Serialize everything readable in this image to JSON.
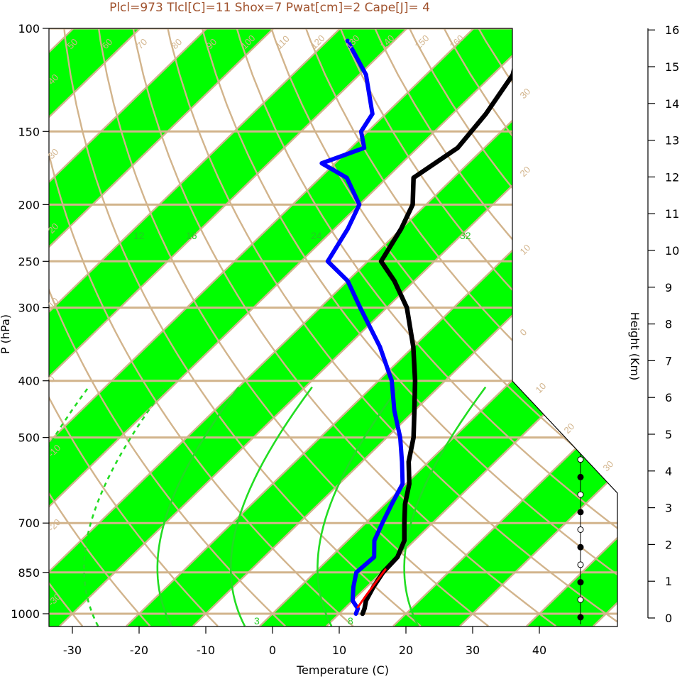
{
  "header": {
    "title": "Plcl=973 Tlcl[C]=11 Shox=7 Pwat[cm]=2 Cape[J]= 4"
  },
  "colors": {
    "band": "#00ff00",
    "isoline": "#d2b48c",
    "mixing": "#22dd22",
    "dewpoint": "#0000ff",
    "temperature": "#000000",
    "parcel": "#ff0000",
    "label_tan": "#d2b48c",
    "title": "#a0522d"
  },
  "chart_data": {
    "type": "line",
    "title": "Plcl=973 Tlcl[C]=11 Shox=7 Pwat[cm]=2 Cape[J]= 4",
    "xlabel": "Temperature (C)",
    "ylabel": "P (hPa)",
    "y2label": "Height (Km)",
    "x_ticks": [
      "-30",
      "-20",
      "-10",
      "0",
      "10",
      "20",
      "30",
      "40"
    ],
    "p_ticks": [
      {
        "p": 100,
        "label": "100"
      },
      {
        "p": 150,
        "label": "150"
      },
      {
        "p": 200,
        "label": "200"
      },
      {
        "p": 250,
        "label": "250"
      },
      {
        "p": 300,
        "label": "300"
      },
      {
        "p": 400,
        "label": "400"
      },
      {
        "p": 500,
        "label": "500"
      },
      {
        "p": 700,
        "label": "700"
      },
      {
        "p": 850,
        "label": "850"
      },
      {
        "p": 1000,
        "label": "1000"
      }
    ],
    "height_ticks": [
      "0",
      "1",
      "2",
      "3",
      "4",
      "5",
      "6",
      "7",
      "8",
      "9",
      "10",
      "11",
      "12",
      "13",
      "14",
      "15",
      "16"
    ],
    "isotherm_labels": [
      "50",
      "60",
      "70",
      "80",
      "90",
      "100",
      "110",
      "120",
      "130",
      "140",
      "150",
      "160",
      "40",
      "30",
      "20",
      "10",
      "0",
      "-10",
      "-20",
      "-30",
      "30",
      "20",
      "10",
      "0",
      "10",
      "20",
      "30"
    ],
    "mixing_labels": [
      "12",
      "16",
      "24",
      "32",
      "3",
      "8"
    ],
    "temperature": {
      "p": [
        1000,
        980,
        950,
        900,
        850,
        800,
        750,
        700,
        650,
        600,
        550,
        500,
        450,
        400,
        350,
        300,
        270,
        250,
        220,
        200,
        180,
        160,
        140,
        120,
        105
      ],
      "t": [
        13.5,
        13,
        12,
        11,
        10.2,
        10,
        8.5,
        5.8,
        3,
        0.5,
        -3,
        -6,
        -10,
        -14.5,
        -20,
        -27,
        -33,
        -38,
        -40,
        -42,
        -46,
        -44,
        -45,
        -47,
        -51
      ]
    },
    "dewpoint": {
      "p": [
        1000,
        980,
        950,
        900,
        850,
        800,
        750,
        700,
        650,
        600,
        550,
        500,
        450,
        400,
        350,
        300,
        270,
        250,
        220,
        200,
        180,
        170,
        160,
        150,
        140,
        120,
        105
      ],
      "t": [
        12.5,
        12,
        10,
        8,
        6.2,
        6.5,
        4,
        2.5,
        1,
        -0.5,
        -4,
        -8,
        -13,
        -18,
        -25,
        -34,
        -40,
        -46,
        -48,
        -50,
        -56,
        -62,
        -58,
        -61,
        -62,
        -69,
        -77
      ]
    },
    "parcel": {
      "p": [
        975,
        930,
        880,
        840
      ],
      "t": [
        11.8,
        11.2,
        10.6,
        10.1
      ]
    },
    "wind_barbs_side": "right",
    "grid": true
  }
}
